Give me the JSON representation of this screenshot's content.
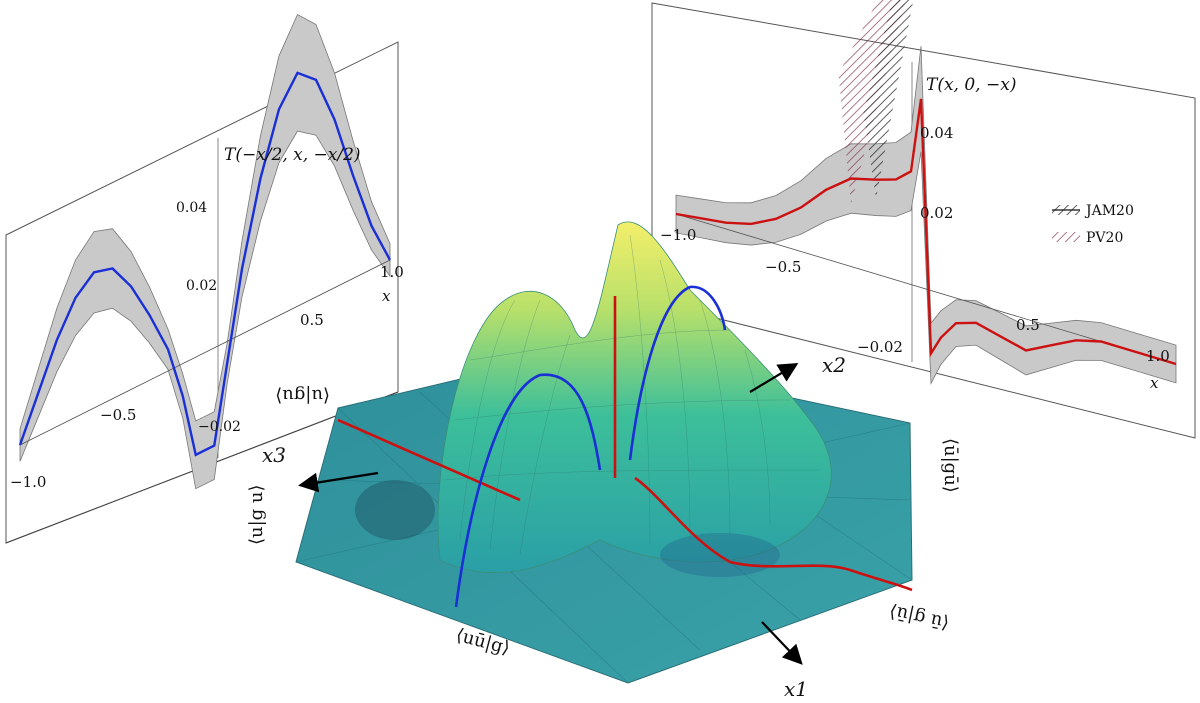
{
  "colors": {
    "blue_curve": "#1a2fd6",
    "red_curve": "#cc1111",
    "band_gray": "#c9c9c9",
    "jam20": "#333333",
    "pv20": "#8a3a55",
    "surface_low": "#2aa0a4",
    "surface_high": "#f2f06a"
  },
  "axes3d": {
    "x1": "x1",
    "x2": "x2",
    "x3": "x3",
    "corner_labels": [
      "⟨u|gu⟩",
      "⟨ū|gū⟩",
      "⟨ū g|ū⟩",
      "⟨uū|g⟩",
      "⟨u|g u⟩"
    ]
  },
  "chart_data": [
    {
      "type": "line",
      "title": "T(−x/2, x, −x/2)",
      "xlabel": "x",
      "ylabel": "",
      "xlim": [
        -1.0,
        1.0
      ],
      "ylim": [
        -0.02,
        0.05
      ],
      "x_tick_labels": [
        "−1.0",
        "−0.5",
        "0.5",
        "1.0"
      ],
      "y_tick_labels": [
        "0.04",
        "0.02",
        "−0.02"
      ],
      "series": [
        {
          "x": [
            -1.0,
            -0.9,
            -0.8,
            -0.7,
            -0.6,
            -0.5,
            -0.4,
            -0.3,
            -0.2,
            -0.12,
            -0.05,
            0.05,
            0.12,
            0.2,
            0.3,
            0.4,
            0.5,
            0.6,
            0.7,
            0.8,
            0.9,
            1.0
          ],
          "y": [
            0.0,
            0.008,
            0.016,
            0.022,
            0.025,
            0.024,
            0.019,
            0.012,
            0.004,
            -0.006,
            -0.018,
            -0.018,
            -0.004,
            0.012,
            0.027,
            0.038,
            0.043,
            0.04,
            0.031,
            0.019,
            0.008,
            0.0
          ]
        }
      ]
    },
    {
      "type": "line",
      "title": "T(x, 0, −x)",
      "xlabel": "x",
      "ylabel": "",
      "xlim": [
        -1.0,
        1.0
      ],
      "ylim": [
        -0.02,
        0.05
      ],
      "x_tick_labels": [
        "−1.0",
        "−0.5",
        "0.5",
        "1.0"
      ],
      "y_tick_labels": [
        "0.04",
        "0.02",
        "−0.02"
      ],
      "legend": {
        "placement": "right",
        "entries": [
          "JAM20",
          "PV20"
        ]
      },
      "series": [
        {
          "x": [
            -1.0,
            -0.9,
            -0.8,
            -0.7,
            -0.6,
            -0.5,
            -0.4,
            -0.3,
            -0.2,
            -0.12,
            -0.06,
            -0.02,
            0.02,
            0.06,
            0.12,
            0.2,
            0.3,
            0.4,
            0.5,
            0.6,
            0.7,
            0.8,
            0.9,
            1.0
          ],
          "y": [
            0.0,
            0.0005,
            0.001,
            0.002,
            0.004,
            0.007,
            0.011,
            0.014,
            0.015,
            0.016,
            0.018,
            0.03,
            -0.01,
            -0.007,
            -0.004,
            -0.003,
            -0.004,
            -0.005,
            -0.003,
            -0.001,
            0.0,
            0.0,
            0.0,
            0.0
          ]
        }
      ]
    }
  ]
}
